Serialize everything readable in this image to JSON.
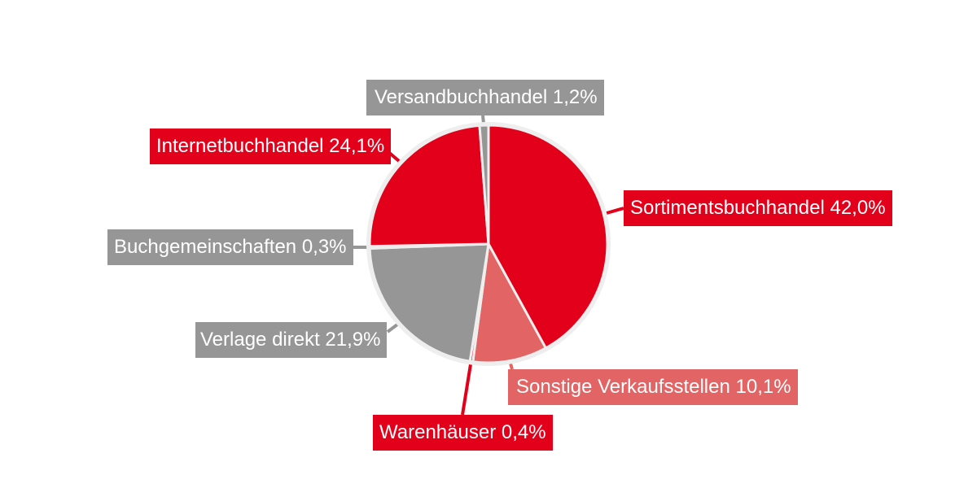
{
  "chart_data": {
    "type": "pie",
    "title": "",
    "start_angle_deg": 0,
    "direction": "clockwise",
    "colors": {
      "red": "#e2001a",
      "gray": "#969696",
      "light_red": "#e36464",
      "border": "#eeeeee"
    },
    "slices": [
      {
        "label": "Sortimentsbuchhandel",
        "value": 42.0,
        "text": "Sortimentsbuchhandel 42,0%",
        "color": "#e2001a"
      },
      {
        "label": "Sonstige Verkaufsstellen",
        "value": 10.1,
        "text": "Sonstige Verkaufsstellen 10,1%",
        "color": "#e36464"
      },
      {
        "label": "Warenhäuser",
        "value": 0.4,
        "text": "Warenhäuser 0,4%",
        "color": "#e2001a"
      },
      {
        "label": "Verlage direkt",
        "value": 21.9,
        "text": "Verlage direkt 21,9%",
        "color": "#969696"
      },
      {
        "label": "Buchgemeinschaften",
        "value": 0.3,
        "text": "Buchgemeinschaften 0,3%",
        "color": "#969696"
      },
      {
        "label": "Internetbuchhandel",
        "value": 24.1,
        "text": "Internetbuchhandel 24,1%",
        "color": "#e2001a"
      },
      {
        "label": "Versandbuchhandel",
        "value": 1.2,
        "text": "Versandbuchhandel 1,2%",
        "color": "#969696"
      }
    ]
  }
}
